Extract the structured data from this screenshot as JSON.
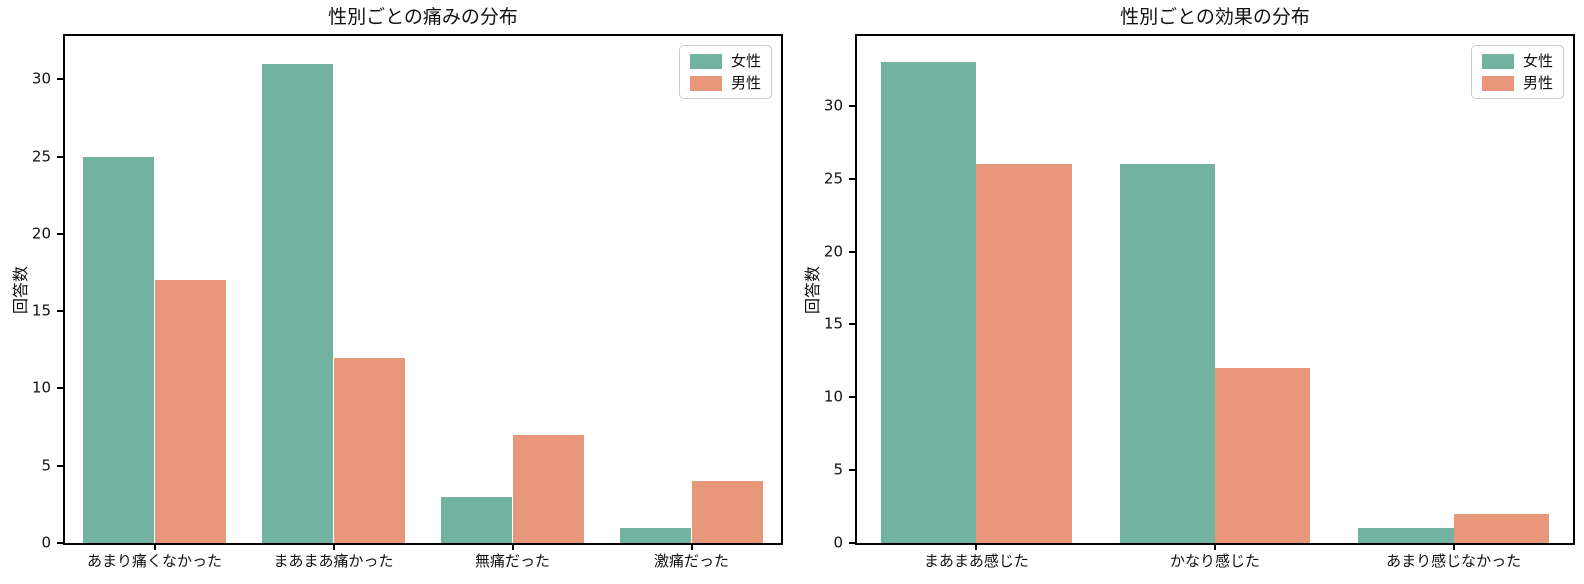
{
  "figure": {
    "background": "#ffffff",
    "text_color": "#111111",
    "spine_color": "#000000",
    "legend_border_color": "#cccccc"
  },
  "chart_data": [
    {
      "type": "bar",
      "title": "性別ごとの痛みの分布",
      "xlabel": "",
      "ylabel": "回答数",
      "categories": [
        "あまり痛くなかった",
        "まあまあ痛かった",
        "無痛だった",
        "激痛だった"
      ],
      "series": [
        {
          "key": "female",
          "name": "女性",
          "color": "#72b2a0",
          "values": [
            25,
            31,
            3,
            1
          ]
        },
        {
          "key": "male",
          "name": "男性",
          "color": "#e9977a",
          "values": [
            17,
            12,
            7,
            4
          ]
        }
      ],
      "yticks": [
        0,
        5,
        10,
        15,
        20,
        25,
        30
      ],
      "ylim": [
        0,
        32.8
      ],
      "grid": false,
      "legend_position": "upper right"
    },
    {
      "type": "bar",
      "title": "性別ごとの効果の分布",
      "xlabel": "",
      "ylabel": "回答数",
      "categories": [
        "まあまあ感じた",
        "かなり感じた",
        "あまり感じなかった"
      ],
      "series": [
        {
          "key": "female",
          "name": "女性",
          "color": "#72b2a0",
          "values": [
            33,
            26,
            1
          ]
        },
        {
          "key": "male",
          "name": "男性",
          "color": "#e9977a",
          "values": [
            26,
            12,
            2
          ]
        }
      ],
      "yticks": [
        0,
        5,
        10,
        15,
        20,
        25,
        30
      ],
      "ylim": [
        0,
        34.8
      ],
      "grid": false,
      "legend_position": "upper right"
    }
  ]
}
